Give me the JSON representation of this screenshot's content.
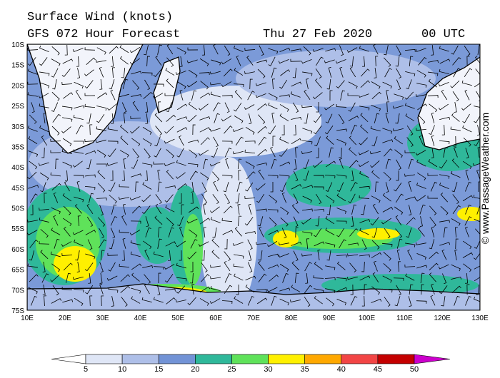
{
  "header": {
    "title": "Surface Wind (knots)",
    "model": "GFS 072 Hour Forecast",
    "date": "Thu 27 Feb 2020",
    "time": "00 UTC"
  },
  "map": {
    "lat_labels": [
      "10S",
      "15S",
      "20S",
      "25S",
      "30S",
      "35S",
      "40S",
      "45S",
      "50S",
      "55S",
      "60S",
      "65S",
      "70S",
      "75S"
    ],
    "lon_labels": [
      "10E",
      "20E",
      "30E",
      "40E",
      "50E",
      "60E",
      "70E",
      "80E",
      "90E",
      "100E",
      "110E",
      "120E",
      "130E"
    ]
  },
  "colorbar": {
    "labels": [
      5,
      10,
      15,
      20,
      25,
      30,
      35,
      40,
      45,
      50
    ],
    "colors": [
      "#ffffff",
      "#dfe6f6",
      "#aebfe8",
      "#7293d6",
      "#2fb89a",
      "#5fe25a",
      "#fff000",
      "#ffa800",
      "#f24545",
      "#c40000",
      "#cc00cc"
    ]
  },
  "credit": "© www.PassageWeather.com"
}
